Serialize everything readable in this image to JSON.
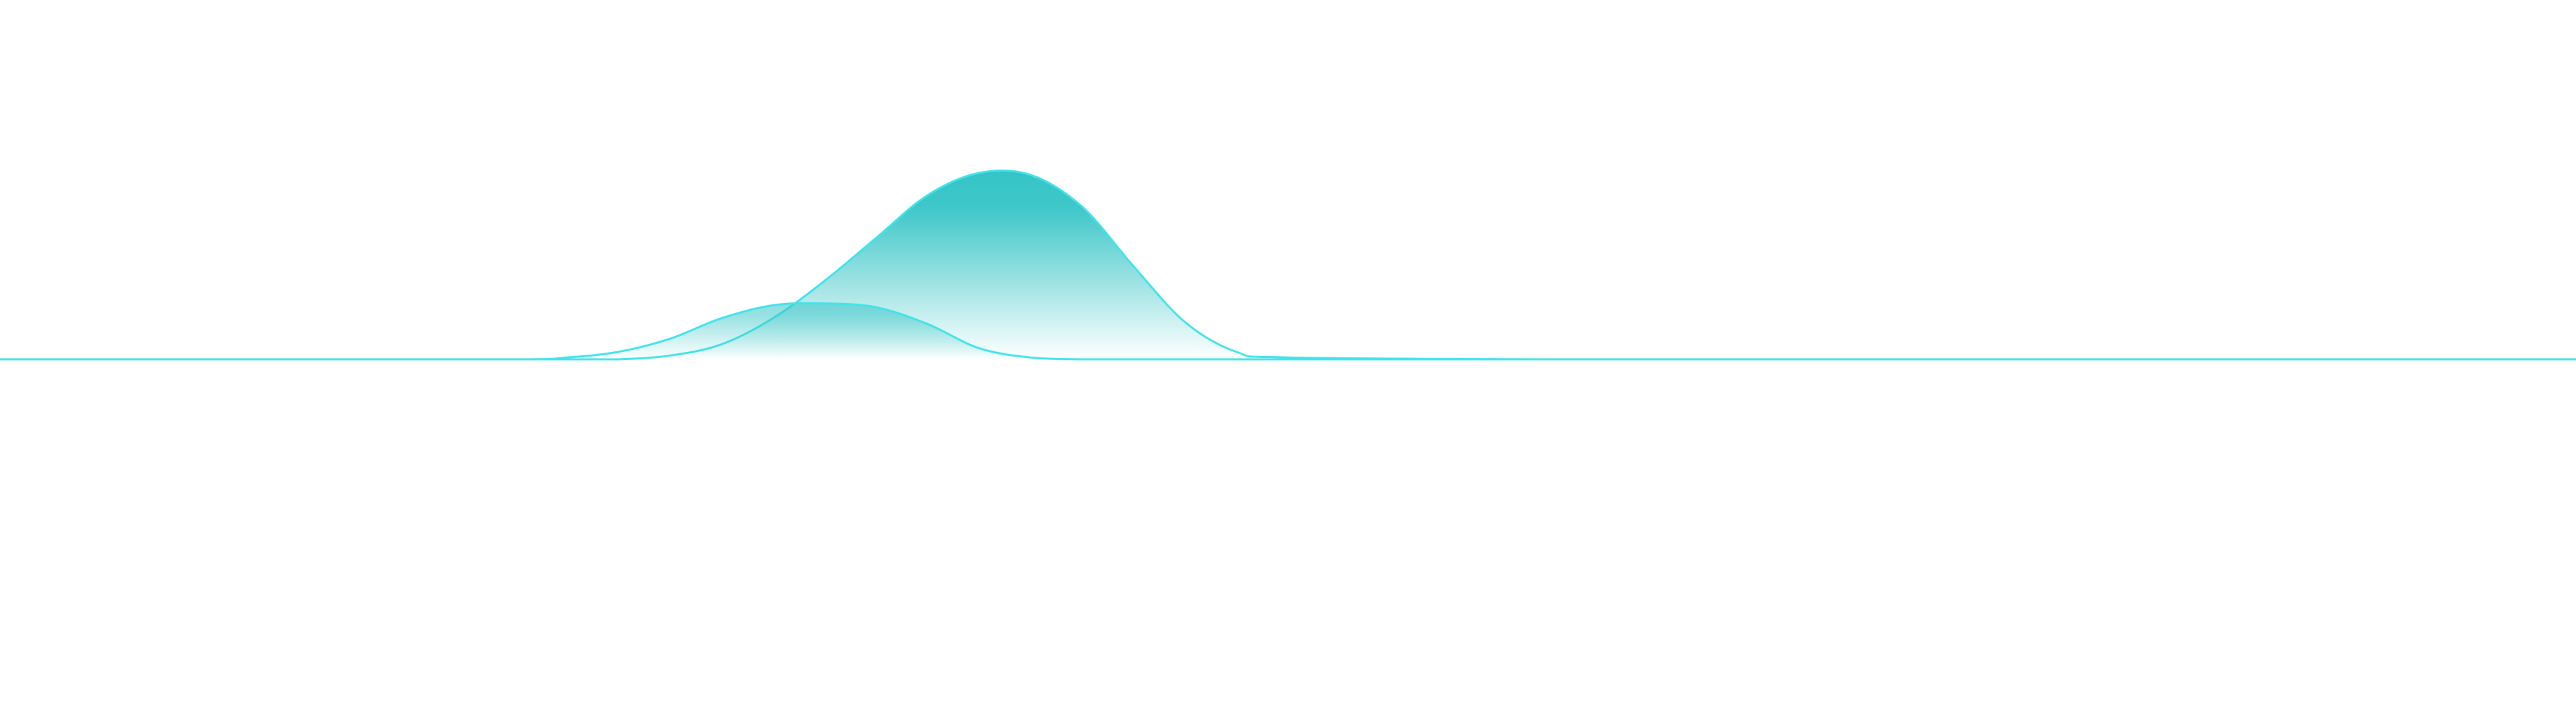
{
  "chart_data": {
    "type": "area",
    "title": "",
    "xlabel": "",
    "ylabel": "",
    "xlim": [
      0,
      100
    ],
    "ylim": [
      0,
      100
    ],
    "grid": false,
    "legend": "none",
    "colors": {
      "stroke": "#3fe3ea",
      "fill_top": "#35c4c6"
    },
    "x": [
      0,
      10,
      20,
      22,
      24,
      26,
      28,
      30,
      32,
      34,
      36,
      38,
      40,
      42,
      44,
      46,
      48,
      50,
      60,
      70,
      80,
      90,
      100
    ],
    "series": [
      {
        "values": [
          0,
          0,
          0,
          0,
          0,
          2,
          8,
          22,
          42,
          65,
          88,
          100,
          99,
          82,
          50,
          20,
          4,
          1,
          0,
          0,
          0,
          0,
          0
        ]
      },
      {
        "values": [
          0,
          0,
          0,
          1,
          4,
          11,
          22,
          29,
          30,
          28,
          19,
          6,
          1,
          0,
          0,
          0,
          0,
          0,
          0,
          0,
          0,
          0,
          0
        ]
      }
    ]
  }
}
